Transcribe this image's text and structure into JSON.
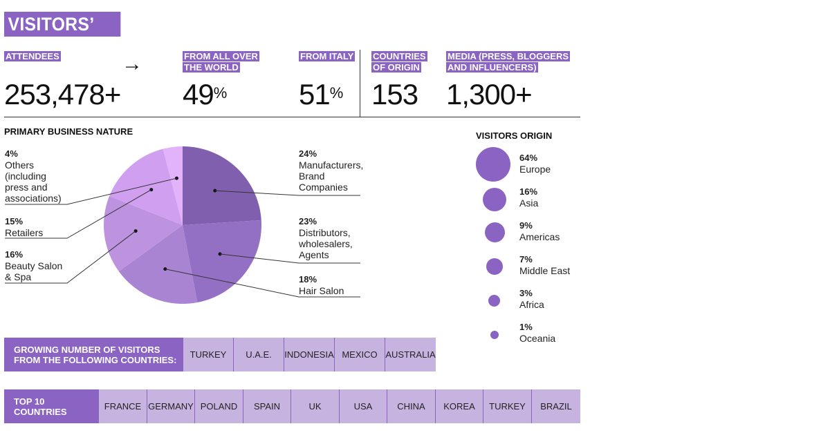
{
  "title": "VISITORS’ DATA",
  "stats": [
    {
      "label_lines": [
        "ATTENDEES"
      ],
      "value": "253,478+",
      "suffix": ""
    },
    {
      "label_lines": [
        "FROM ALL OVER",
        "THE WORLD"
      ],
      "value": "49",
      "suffix": "%"
    },
    {
      "label_lines": [
        "FROM ITALY"
      ],
      "value": "51",
      "suffix": "%"
    },
    {
      "label_lines": [
        "COUNTRIES",
        "OF ORIGIN"
      ],
      "value": "153",
      "suffix": ""
    },
    {
      "label_lines": [
        "MEDIA (PRESS, BLOGGERS",
        "AND INFLUENCERS)"
      ],
      "value": "1,300+",
      "suffix": ""
    }
  ],
  "arrow": "→",
  "chart_data": [
    {
      "type": "pie",
      "title": "PRIMARY BUSINESS NATURE",
      "slices": [
        {
          "label": "Manufacturers, Brand Companies",
          "label_lines": [
            "Manufacturers,",
            "Brand",
            "Companies"
          ],
          "value": 24,
          "pct_text": "24%",
          "color": "#7f5fae"
        },
        {
          "label": "Distributors, wholesalers, Agents",
          "label_lines": [
            "Distributors,",
            "wholesalers,",
            "Agents"
          ],
          "value": 23,
          "pct_text": "23%",
          "color": "#9470c4"
        },
        {
          "label": "Hair Salon",
          "label_lines": [
            "Hair Salon"
          ],
          "value": 18,
          "pct_text": "18%",
          "color": "#a984d3"
        },
        {
          "label": "Beauty Salon & Spa",
          "label_lines": [
            "Beauty Salon",
            "& Spa"
          ],
          "value": 16,
          "pct_text": "16%",
          "color": "#bd93e0"
        },
        {
          "label": "Retailers",
          "label_lines": [
            "Retailers"
          ],
          "value": 15,
          "pct_text": "15%",
          "color": "#d09ff0"
        },
        {
          "label": "Others (including press and associations)",
          "label_lines": [
            "Others",
            "(including",
            "press and",
            "associations)"
          ],
          "value": 4,
          "pct_text": "4%",
          "color": "#e2b2fb"
        }
      ]
    },
    {
      "type": "bubble",
      "title": "VISITORS ORIGIN",
      "items": [
        {
          "label": "Europe",
          "value": 64,
          "pct_text": "64%"
        },
        {
          "label": "Asia",
          "value": 16,
          "pct_text": "16%"
        },
        {
          "label": "Americas",
          "value": 9,
          "pct_text": "9%"
        },
        {
          "label": "Middle East",
          "value": 7,
          "pct_text": "7%"
        },
        {
          "label": "Africa",
          "value": 3,
          "pct_text": "3%"
        },
        {
          "label": "Oceania",
          "value": 1,
          "pct_text": "1%"
        }
      ],
      "color": "#8a63c3"
    }
  ],
  "growing": {
    "heading_lines": [
      "GROWING NUMBER OF VISITORS",
      "FROM THE FOLLOWING COUNTRIES:"
    ],
    "countries": [
      "TURKEY",
      "U.A.E.",
      "INDONESIA",
      "MEXICO",
      "AUSTRALIA"
    ]
  },
  "top10": {
    "heading_lines": [
      "TOP 10",
      "COUNTRIES"
    ],
    "countries": [
      "FRANCE",
      "GERMANY",
      "POLAND",
      "SPAIN",
      "UK",
      "USA",
      "CHINA",
      "KOREA",
      "TURKEY",
      "BRAZIL"
    ]
  }
}
